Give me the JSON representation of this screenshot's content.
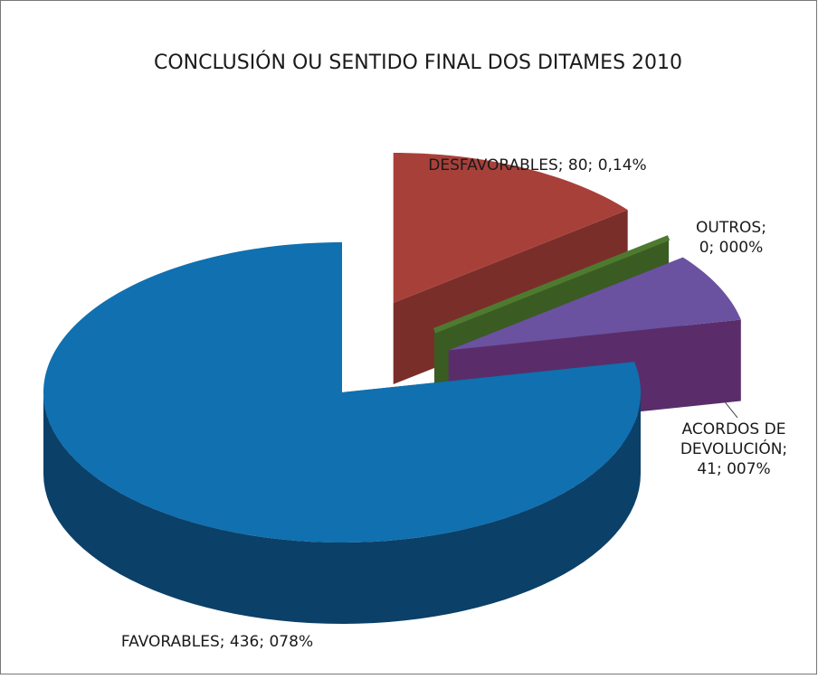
{
  "chart_data": {
    "type": "pie",
    "title": "CONCLUSIÓN OU SENTIDO FINAL DOS DITAMES 2010",
    "values": [
      80,
      0,
      41,
      436
    ],
    "value_labels": [
      [
        "DESFAVORABLES; 80; 0,14%"
      ],
      [
        "OUTROS;",
        "0; 000%"
      ],
      [
        "ACORDOS DE",
        "DEVOLUCIÓN;",
        "41; 007%"
      ],
      [
        "FAVORABLES; 436; 078%"
      ]
    ],
    "colors": [
      "#a8403a",
      "#4e7a30",
      "#6a52a0",
      "#1070b0"
    ],
    "side_colors": [
      "#7a2e2a",
      "#3a5c22",
      "#5a2d6a",
      "#0b4068"
    ]
  }
}
